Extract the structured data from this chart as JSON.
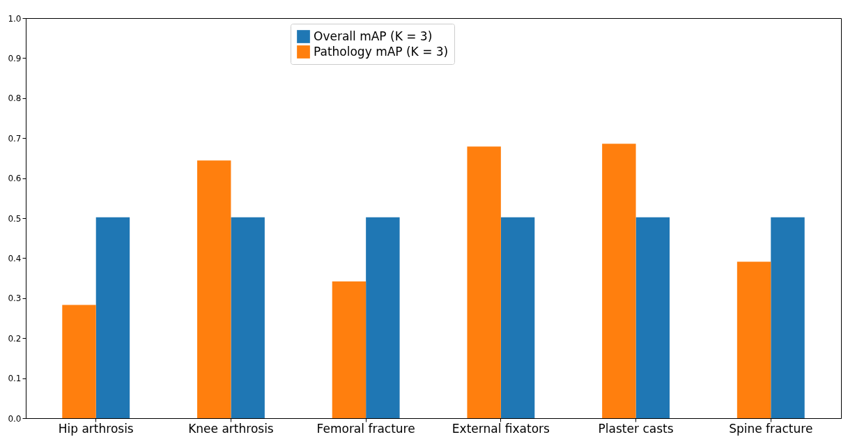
{
  "chart_data": {
    "type": "bar",
    "categories": [
      "Hip arthrosis",
      "Knee arthrosis",
      "Femoral fracture",
      "External fixators",
      "Plaster casts",
      "Spine fracture"
    ],
    "series": [
      {
        "name": "Overall mAP (K = 3)",
        "color": "#1f77b4",
        "values": [
          0.502,
          0.502,
          0.502,
          0.502,
          0.502,
          0.502
        ]
      },
      {
        "name": "Pathology mAP (K = 3)",
        "color": "#ff7f0e",
        "values": [
          0.283,
          0.644,
          0.342,
          0.679,
          0.686,
          0.391
        ]
      }
    ],
    "ylim": [
      0,
      1.0
    ],
    "yticks": [
      {
        "value": 0,
        "label": "0.0"
      },
      0.1,
      0.2,
      0.3,
      0.4,
      0.5,
      0.6,
      0.7,
      0.8,
      0.9,
      {
        "value": 1.0,
        "label": "1.0"
      }
    ],
    "grid": false,
    "legend": "top"
  }
}
